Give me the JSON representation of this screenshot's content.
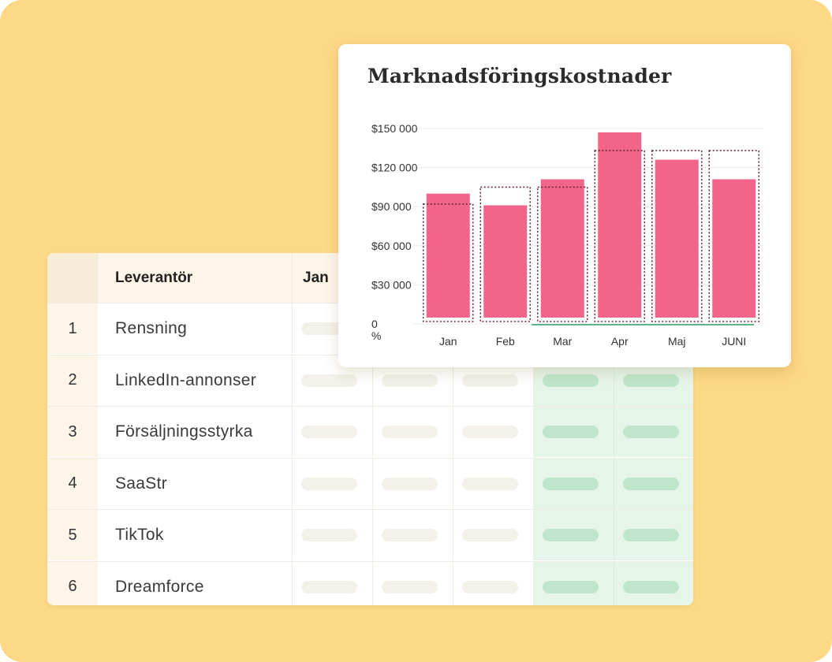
{
  "table": {
    "headers": {
      "vendor": "Leverantör",
      "months": [
        "Jan",
        "",
        "",
        "",
        ""
      ]
    },
    "rows": [
      {
        "index": "1",
        "vendor": "Rensning"
      },
      {
        "index": "2",
        "vendor": "LinkedIn-annonser"
      },
      {
        "index": "3",
        "vendor": "Försäljningsstyrka"
      },
      {
        "index": "4",
        "vendor": "SaaStr"
      },
      {
        "index": "5",
        "vendor": "TikTok"
      },
      {
        "index": "6",
        "vendor": "Dreamforce"
      }
    ],
    "highlight_columns": [
      3,
      4
    ],
    "colors": {
      "highlight": "#e6f5ea",
      "pill": "#f3f1ea",
      "pill_highlight": "#bfe6cc"
    }
  },
  "chart": {
    "title": "Marknadsföringskostnader"
  },
  "chart_data": {
    "type": "bar",
    "title": "Marknadsföringskostnader",
    "categories": [
      "Jan",
      "Feb",
      "Mar",
      "Apr",
      "Maj",
      "JUNI"
    ],
    "values": [
      100000,
      91000,
      111000,
      147000,
      126000,
      111000
    ],
    "targets": [
      92000,
      105000,
      105000,
      133000,
      133000,
      133000
    ],
    "yticks": [
      "0",
      "$30 000",
      "$60 000",
      "$90 000",
      "$120 000",
      "$150 000"
    ],
    "ytick_values": [
      0,
      30000,
      60000,
      90000,
      120000,
      150000
    ],
    "y_unit_label": "%",
    "ylim": [
      0,
      150000
    ],
    "bar_color": "#f2658a",
    "target_outline_color": "#6b2a3a",
    "baseline_highlight_color": "#2e9e63",
    "grid": true
  }
}
